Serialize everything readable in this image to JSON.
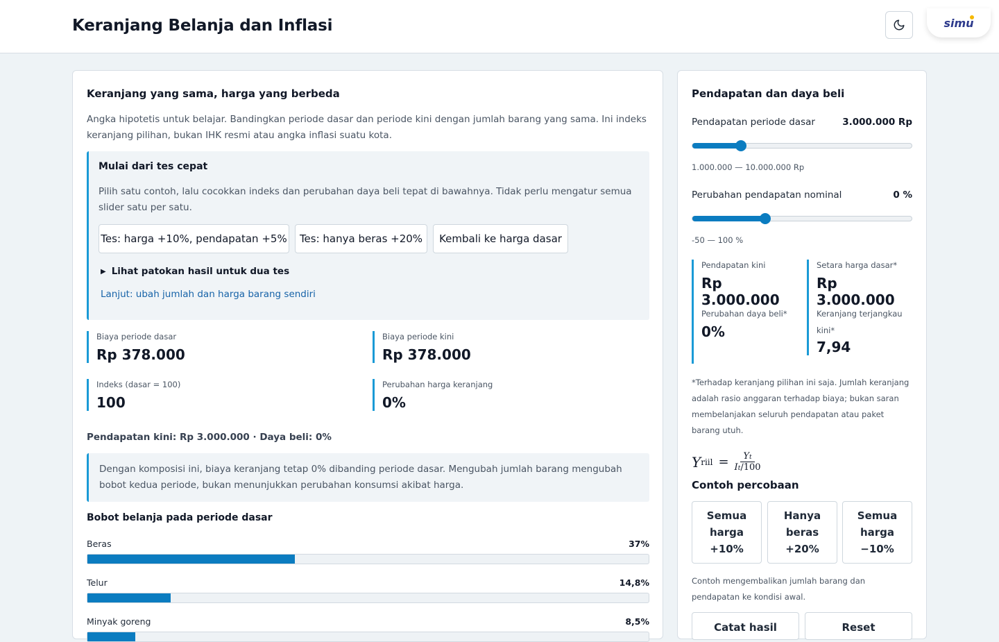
{
  "header": {
    "title": "Keranjang Belanja dan Inflasi",
    "logo_text": "simu"
  },
  "left": {
    "title": "Keranjang yang sama, harga yang berbeda",
    "intro": "Angka hipotetis untuk belajar. Bandingkan periode dasar dan periode kini dengan jumlah barang yang sama. Ini indeks keranjang pilihan, bukan IHK resmi atau angka inflasi suatu kota.",
    "quick": {
      "title": "Mulai dari tes cepat",
      "desc": "Pilih satu contoh, lalu cocokkan indeks dan perubahan daya beli tepat di bawahnya. Tidak perlu mengatur semua slider satu per satu.",
      "buttons": [
        "Tes: harga +10%, pendapatan +5%",
        "Tes: hanya beras +20%",
        "Kembali ke harga dasar"
      ],
      "details_label": "Lihat patokan hasil untuk dua tes",
      "link": "Lanjut: ubah jumlah dan harga barang sendiri"
    },
    "stats": [
      {
        "label": "Biaya periode dasar",
        "value": "Rp 378.000"
      },
      {
        "label": "Biaya periode kini",
        "value": "Rp 378.000"
      },
      {
        "label": "Indeks (dasar = 100)",
        "value": "100"
      },
      {
        "label": "Perubahan harga keranjang",
        "value": "0%"
      }
    ],
    "summary": "Pendapatan kini: Rp 3.000.000 · Daya beli: 0%",
    "note": "Dengan komposisi ini, biaya keranjang tetap 0% dibanding periode dasar. Mengubah jumlah barang mengubah bobot kedua periode, bukan menunjukkan perubahan konsumsi akibat harga.",
    "weights_title": "Bobot belanja pada periode dasar",
    "weights": [
      {
        "label": "Beras",
        "pct_text": "37%",
        "fraction": 0.37
      },
      {
        "label": "Telur",
        "pct_text": "14,8%",
        "fraction": 0.148
      },
      {
        "label": "Minyak goreng",
        "pct_text": "8,5%",
        "fraction": 0.085
      }
    ]
  },
  "right": {
    "title": "Pendapatan dan daya beli",
    "sliders": [
      {
        "label": "Pendapatan periode dasar",
        "value": "3.000.000 Rp",
        "range": "1.000.000 — 10.000.000 Rp",
        "fraction": 0.2222
      },
      {
        "label": "Perubahan pendapatan nominal",
        "value": "0 %",
        "range": "-50 — 100 %",
        "fraction": 0.3333
      }
    ],
    "stats": [
      {
        "label": "Pendapatan kini",
        "value": "Rp 3.000.000"
      },
      {
        "label": "Setara harga dasar*",
        "value": "Rp 3.000.000"
      },
      {
        "label": "Perubahan daya beli*",
        "value": "0%"
      },
      {
        "label": "Keranjang terjangkau kini*",
        "value": "7,94"
      }
    ],
    "footnote": "*Terhadap keranjang pilihan ini saja. Jumlah keranjang adalah rasio anggaran terhadap biaya; bukan saran membelanjakan seluruh pendapatan atau paket barang utuh.",
    "formula": {
      "lhs": "Y",
      "lhs_sub": "riil",
      "num": "Y",
      "num_sub": "t",
      "den": "I",
      "den_sub": "t",
      "den_tail": "/100"
    },
    "try_title": "Contoh percobaan",
    "try_buttons": [
      "Semua harga +10%",
      "Hanya beras +20%",
      "Semua harga −10%"
    ],
    "try_note": "Contoh mengembalikan jumlah barang dan pendapatan ke kondisi awal.",
    "bottom_buttons": [
      "Catat hasil",
      "Reset"
    ]
  },
  "colors": {
    "accent": "#0b7cc0",
    "accent_border": "#1a9ad6",
    "panel": "#f0f4f7"
  }
}
